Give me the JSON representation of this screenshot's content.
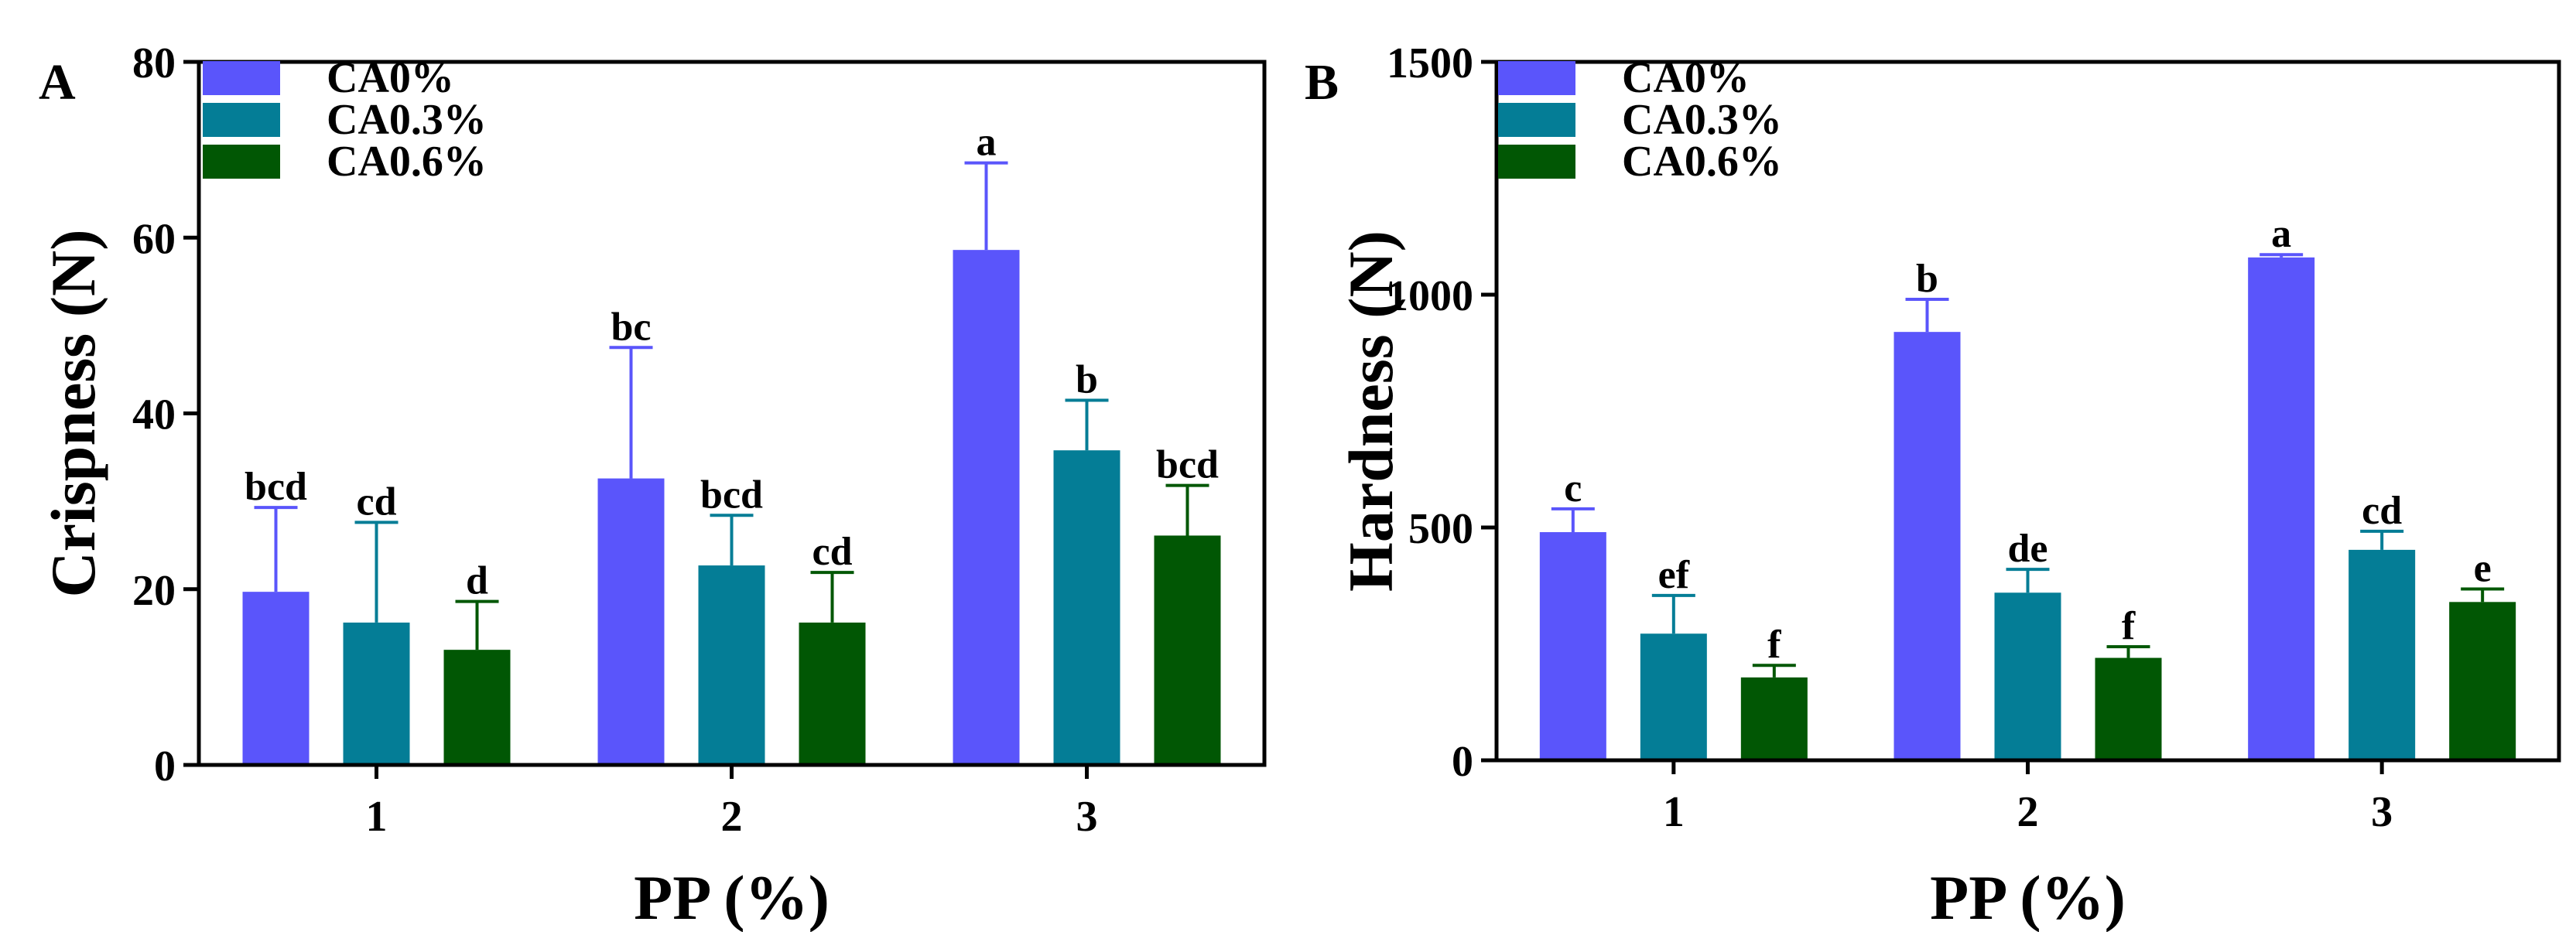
{
  "colors": {
    "CA0%": "#5a55fb",
    "CA0.3%": "#047d96",
    "CA0.6%": "#015704"
  },
  "chart_data": [
    {
      "panel_label": "A",
      "type": "bar",
      "title": "",
      "xlabel": "PP (%)",
      "ylabel": "Crispness (N)",
      "categories": [
        "1",
        "2",
        "3"
      ],
      "ylim": [
        0,
        80
      ],
      "yticks": [
        0,
        20,
        40,
        60,
        80
      ],
      "legend_position": "top-left",
      "series": [
        {
          "name": "CA0%",
          "values": [
            19.7,
            32.6,
            58.6
          ],
          "errors": [
            9.6,
            14.9,
            9.9
          ],
          "letters": [
            "bcd",
            "bc",
            "a"
          ]
        },
        {
          "name": "CA0.3%",
          "values": [
            16.2,
            22.7,
            35.8
          ],
          "errors": [
            11.4,
            5.7,
            5.7
          ],
          "letters": [
            "cd",
            "bcd",
            "b"
          ]
        },
        {
          "name": "CA0.6%",
          "values": [
            13.1,
            16.2,
            26.1
          ],
          "errors": [
            5.5,
            5.7,
            5.7
          ],
          "letters": [
            "d",
            "cd",
            "bcd"
          ]
        }
      ]
    },
    {
      "panel_label": "B",
      "type": "bar",
      "title": "",
      "xlabel": "PP (%)",
      "ylabel": "Hardness (N)",
      "categories": [
        "1",
        "2",
        "3"
      ],
      "ylim": [
        0,
        1500
      ],
      "yticks": [
        0,
        500,
        1000,
        1500
      ],
      "legend_position": "top-left",
      "series": [
        {
          "name": "CA0%",
          "values": [
            490,
            920,
            1080
          ],
          "errors": [
            50,
            70,
            6
          ],
          "letters": [
            "c",
            "b",
            "a"
          ]
        },
        {
          "name": "CA0.3%",
          "values": [
            272,
            360,
            452
          ],
          "errors": [
            82,
            50,
            40
          ],
          "letters": [
            "ef",
            "de",
            "cd"
          ]
        },
        {
          "name": "CA0.6%",
          "values": [
            178,
            220,
            340
          ],
          "errors": [
            26,
            24,
            28
          ],
          "letters": [
            "f",
            "f",
            "e"
          ]
        }
      ]
    }
  ]
}
